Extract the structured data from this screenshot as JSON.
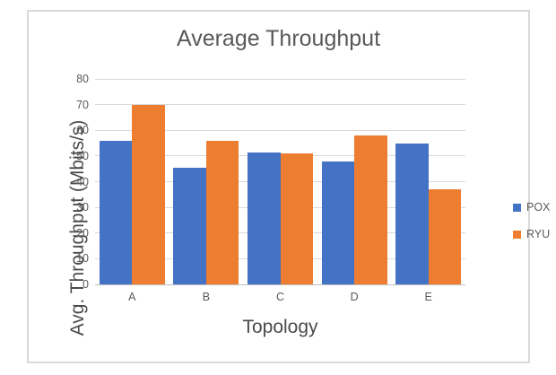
{
  "window": {
    "background": "#ffffff",
    "frame_border_color": "#d9d9d9"
  },
  "chart_data": {
    "type": "bar",
    "title": "Average Throughput",
    "xlabel": "Topology",
    "ylabel": "Avg. Throughput (Mbits/s)",
    "categories": [
      "A",
      "B",
      "C",
      "D",
      "E"
    ],
    "series": [
      {
        "name": "POX",
        "color": "#4472C4",
        "values": [
          56,
          45.5,
          51.5,
          48,
          55
        ]
      },
      {
        "name": "RYU",
        "color": "#ED7D31",
        "values": [
          70,
          56,
          51,
          58,
          37
        ]
      }
    ],
    "ylim": [
      0,
      80
    ],
    "yticks": [
      0,
      10,
      20,
      30,
      40,
      50,
      60,
      70,
      80
    ],
    "grid": "horizontal",
    "legend_position": "right",
    "title_color": "#595959",
    "axis_title_color": "#4a4a4a",
    "tick_label_color": "#595959",
    "gridline_color": "#d9d9d9"
  }
}
